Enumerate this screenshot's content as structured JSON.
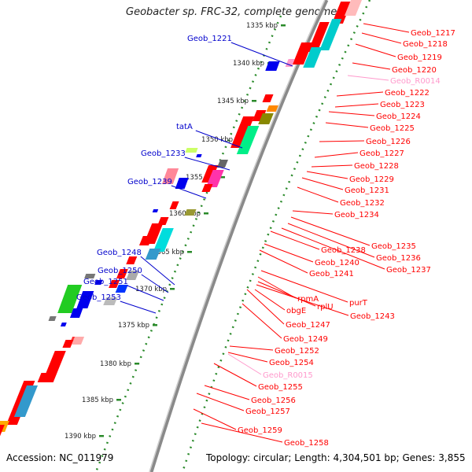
{
  "title": "Geobacter sp. FRC-32, complete genome",
  "accession": "Accession: NC_011979",
  "topology": "Topology: circular; Length: 4,304,501 bp; Genes: 3,855",
  "colors": {
    "forward_gene": "#ff0000",
    "trna": "#ff99cc",
    "left_label": "#0000cc",
    "left_gene": "#0000ee",
    "ticks": "#228822",
    "backbone": "#888888"
  },
  "kbp_ticks": [
    "1335 kbp",
    "1340 kbp",
    "1345 kbp",
    "1350 kbp",
    "1355 kbp",
    "1360 kbp",
    "1365 kbp",
    "1370 kbp",
    "1375 kbp",
    "1380 kbp",
    "1385 kbp",
    "1390 kbp"
  ],
  "left_labels": [
    "Geob_1221",
    "tatA",
    "Geob_1233",
    "Geob_1239",
    "Geob_1248",
    "Geob_1250",
    "Geob_1251",
    "Geob_1253"
  ],
  "right_labels": [
    "Geob_1217",
    "Geob_1218",
    "Geob_1219",
    "Geob_1220",
    "Geob_R0014",
    "Geob_1222",
    "Geob_1223",
    "Geob_1224",
    "Geob_1225",
    "Geob_1226",
    "Geob_1227",
    "Geob_1228",
    "Geob_1229",
    "Geob_1231",
    "Geob_1232",
    "Geob_1234",
    "Geob_1235",
    "Geob_1236",
    "Geob_1237",
    "Geob_1238",
    "Geob_1240",
    "Geob_1241",
    "purT",
    "rpmA",
    "rplU",
    "obgE",
    "Geob_1243",
    "Geob_1247",
    "Geob_1249",
    "Geob_1252",
    "Geob_1254",
    "Geob_R0015",
    "Geob_1255",
    "Geob_1256",
    "Geob_1257",
    "Geob_1259",
    "Geob_1258"
  ]
}
